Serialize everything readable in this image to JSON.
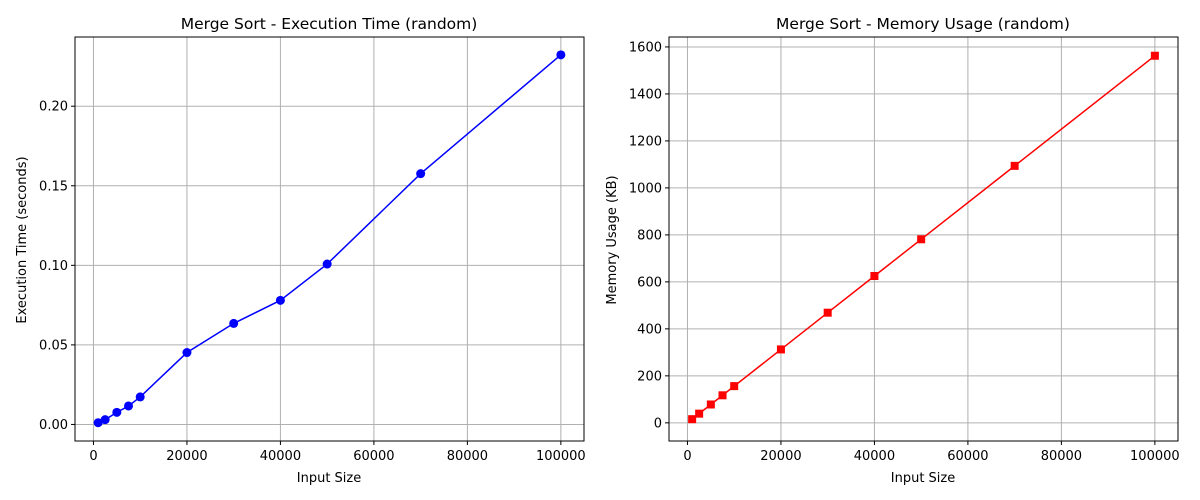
{
  "chart_data": [
    {
      "type": "line",
      "title": "Merge Sort - Execution Time (random)",
      "xlabel": "Input Size",
      "ylabel": "Execution Time (seconds)",
      "xlim": [
        -3950,
        104950
      ],
      "ylim": [
        -0.0104,
        0.2435
      ],
      "xticks": [
        0,
        20000,
        40000,
        60000,
        80000,
        100000
      ],
      "yticks": [
        0.0,
        0.05,
        0.1,
        0.15,
        0.2
      ],
      "ytick_labels": [
        "0.00",
        "0.05",
        "0.10",
        "0.15",
        "0.20"
      ],
      "grid": true,
      "color": "#0000ff",
      "marker": "circle",
      "series": [
        {
          "x": [
            1000,
            2500,
            5000,
            7500,
            10000,
            20000,
            30000,
            40000,
            50000,
            70000,
            100000
          ],
          "y": [
            0.0011,
            0.003,
            0.0076,
            0.0116,
            0.0173,
            0.0452,
            0.0635,
            0.078,
            0.1008,
            0.1576,
            0.2323
          ]
        }
      ]
    },
    {
      "type": "line",
      "title": "Merge Sort - Memory Usage (random)",
      "xlabel": "Input Size",
      "ylabel": "Memory Usage (KB)",
      "xlim": [
        -3950,
        104950
      ],
      "ylim": [
        -77.3,
        1642.3
      ],
      "xticks": [
        0,
        20000,
        40000,
        60000,
        80000,
        100000
      ],
      "yticks": [
        0,
        200,
        400,
        600,
        800,
        1000,
        1200,
        1400,
        1600
      ],
      "ytick_labels": [
        "0",
        "200",
        "400",
        "600",
        "800",
        "1000",
        "1200",
        "1400",
        "1600"
      ],
      "grid": true,
      "color": "#ff0000",
      "marker": "square",
      "series": [
        {
          "x": [
            1000,
            2500,
            5000,
            7500,
            10000,
            20000,
            30000,
            40000,
            50000,
            70000,
            100000
          ],
          "y": [
            15.6,
            39.1,
            78.1,
            117.2,
            156.3,
            312.5,
            468.8,
            625.0,
            781.3,
            1093.8,
            1562.5
          ]
        }
      ]
    }
  ]
}
